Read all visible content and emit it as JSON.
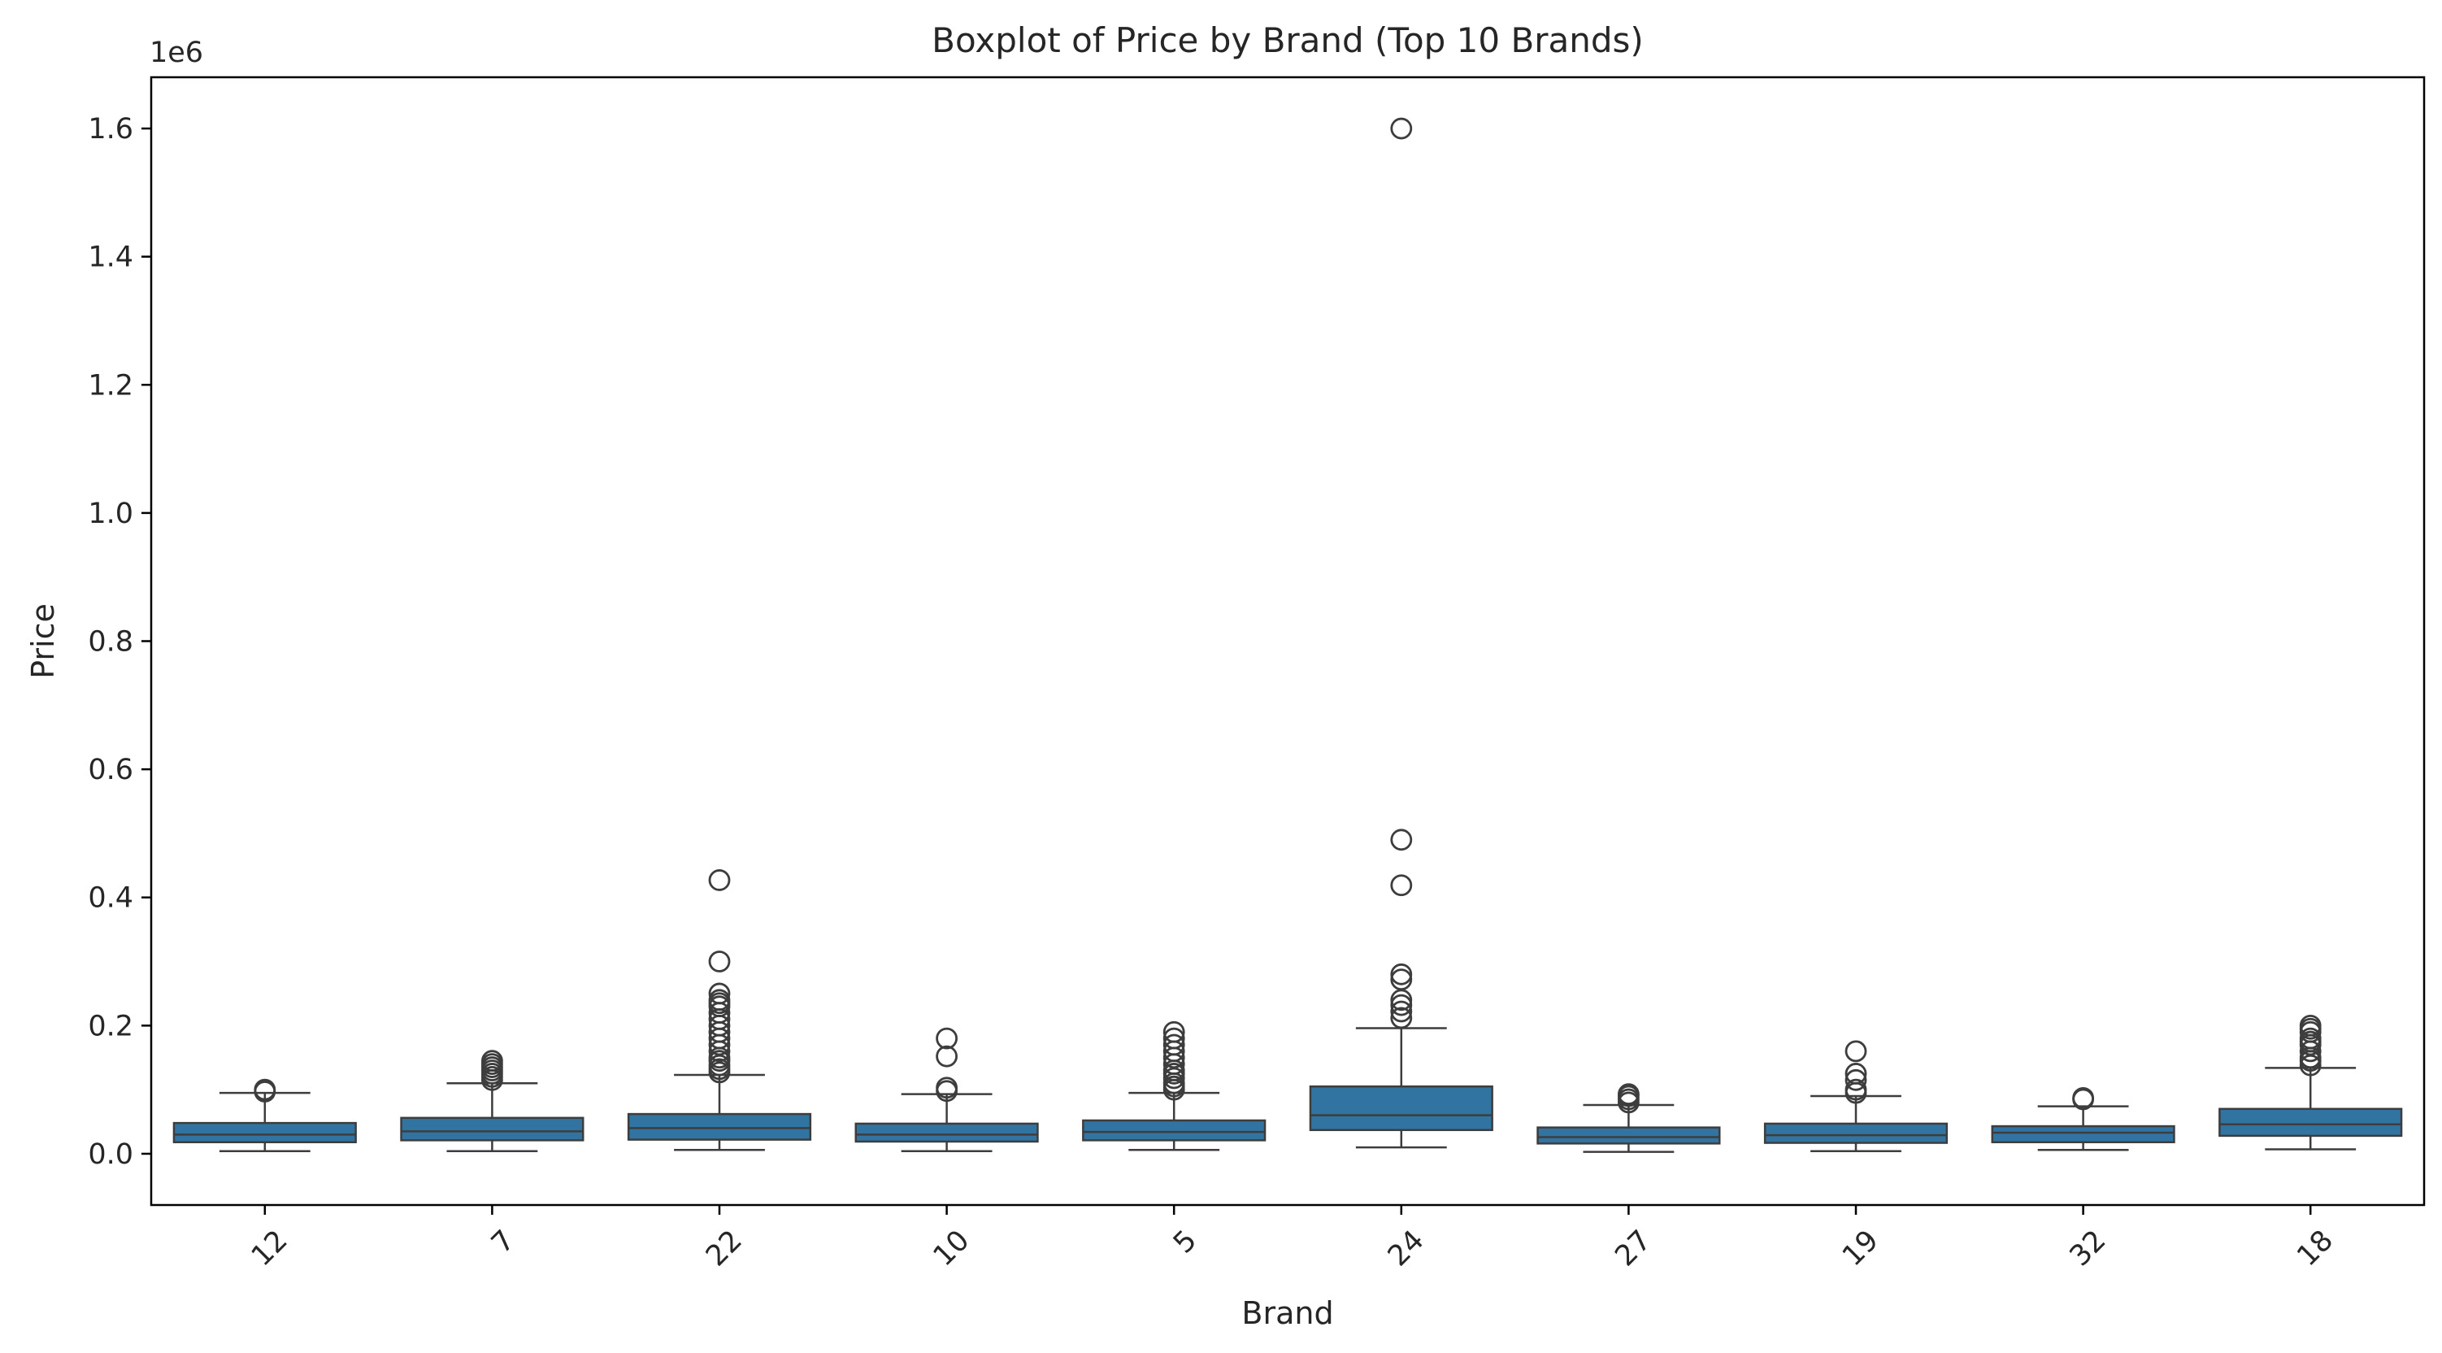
{
  "chart_data": {
    "type": "box",
    "title": "Boxplot of Price by Brand (Top 10 Brands)",
    "xlabel": "Brand",
    "ylabel": "Price",
    "y_scale_label": "1e6",
    "ylim": [
      -0.08,
      1.68
    ],
    "yticks": [
      0.0,
      0.2,
      0.4,
      0.6,
      0.8,
      1.0,
      1.2,
      1.4,
      1.6
    ],
    "ytick_labels": [
      "0.0",
      "0.2",
      "0.4",
      "0.6",
      "0.8",
      "1.0",
      "1.2",
      "1.4",
      "1.6"
    ],
    "x_tick_rotation_deg": 45,
    "grid": false,
    "colors": {
      "box_fill": "#3274a1",
      "line": "#3d3d3d",
      "outlier_edge": "#3d3d3d"
    },
    "categories": [
      "12",
      "7",
      "22",
      "10",
      "5",
      "24",
      "27",
      "19",
      "32",
      "18"
    ],
    "boxes": [
      {
        "category": "12",
        "whisker_low": 0.004,
        "q1": 0.018,
        "median": 0.03,
        "q3": 0.048,
        "whisker_high": 0.095,
        "outliers": [
          0.097,
          0.1
        ]
      },
      {
        "category": "7",
        "whisker_low": 0.004,
        "q1": 0.021,
        "median": 0.035,
        "q3": 0.056,
        "whisker_high": 0.11,
        "outliers": [
          0.115,
          0.12,
          0.125,
          0.13,
          0.135,
          0.14,
          0.145
        ]
      },
      {
        "category": "22",
        "whisker_low": 0.006,
        "q1": 0.022,
        "median": 0.04,
        "q3": 0.062,
        "whisker_high": 0.123,
        "outliers": [
          0.127,
          0.132,
          0.138,
          0.145,
          0.15,
          0.16,
          0.17,
          0.18,
          0.19,
          0.2,
          0.21,
          0.22,
          0.23,
          0.235,
          0.24,
          0.25,
          0.3,
          0.427
        ]
      },
      {
        "category": "10",
        "whisker_low": 0.004,
        "q1": 0.019,
        "median": 0.03,
        "q3": 0.047,
        "whisker_high": 0.093,
        "outliers": [
          0.098,
          0.103,
          0.152,
          0.18
        ]
      },
      {
        "category": "5",
        "whisker_low": 0.006,
        "q1": 0.021,
        "median": 0.034,
        "q3": 0.052,
        "whisker_high": 0.095,
        "outliers": [
          0.1,
          0.105,
          0.11,
          0.118,
          0.125,
          0.13,
          0.14,
          0.15,
          0.16,
          0.17,
          0.18,
          0.19
        ]
      },
      {
        "category": "24",
        "whisker_low": 0.01,
        "q1": 0.037,
        "median": 0.06,
        "q3": 0.105,
        "whisker_high": 0.196,
        "outliers": [
          0.212,
          0.222,
          0.232,
          0.24,
          0.272,
          0.28,
          0.419,
          0.49,
          1.6
        ]
      },
      {
        "category": "27",
        "whisker_low": 0.003,
        "q1": 0.016,
        "median": 0.026,
        "q3": 0.041,
        "whisker_high": 0.076,
        "outliers": [
          0.08,
          0.085,
          0.09,
          0.093
        ]
      },
      {
        "category": "19",
        "whisker_low": 0.004,
        "q1": 0.017,
        "median": 0.029,
        "q3": 0.047,
        "whisker_high": 0.09,
        "outliers": [
          0.095,
          0.1,
          0.115,
          0.125,
          0.16
        ]
      },
      {
        "category": "32",
        "whisker_low": 0.006,
        "q1": 0.018,
        "median": 0.033,
        "q3": 0.043,
        "whisker_high": 0.074,
        "outliers": [
          0.085,
          0.087
        ]
      },
      {
        "category": "18",
        "whisker_low": 0.007,
        "q1": 0.028,
        "median": 0.046,
        "q3": 0.07,
        "whisker_high": 0.134,
        "outliers": [
          0.138,
          0.145,
          0.15,
          0.16,
          0.17,
          0.175,
          0.18,
          0.19,
          0.195,
          0.2
        ]
      }
    ]
  }
}
